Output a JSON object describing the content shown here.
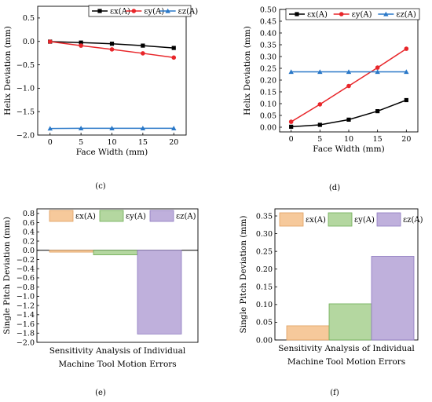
{
  "colors": {
    "ex": "#000000",
    "ey": "#e8262a",
    "ez": "#2a78c8",
    "bar_ex": "#f6c99b",
    "bar_ey": "#b4d7a0",
    "bar_ez": "#bfb0dc"
  },
  "chart_data": [
    {
      "panel": "c",
      "type": "line",
      "label": "(c)",
      "xlabel": "Face Width (mm)",
      "ylabel": "Helix Deviation (mm)",
      "x": [
        0,
        5,
        10,
        15,
        20
      ],
      "xticks": [
        "0",
        "5",
        "10",
        "15",
        "20"
      ],
      "yticks": [
        "0.5",
        "0.0",
        "−0.5",
        "−1.0",
        "−1.5",
        "−2.0"
      ],
      "ylim": [
        -2.0,
        0.75
      ],
      "legend": [
        "εx(A)",
        "εy(A)",
        "εz(A)"
      ],
      "legend_position": "top-right",
      "series": [
        {
          "name": "εx(A)",
          "values": [
            -0.005,
            -0.025,
            -0.05,
            -0.09,
            -0.14
          ]
        },
        {
          "name": "εy(A)",
          "values": [
            -0.005,
            -0.09,
            -0.17,
            -0.255,
            -0.345
          ]
        },
        {
          "name": "εz(A)",
          "values": [
            -1.86,
            -1.855,
            -1.855,
            -1.855,
            -1.855
          ]
        }
      ]
    },
    {
      "panel": "d",
      "type": "line",
      "label": "(d)",
      "xlabel": "Face Width (mm)",
      "ylabel": "Helix Deviation (mm)",
      "x": [
        0,
        5,
        10,
        15,
        20
      ],
      "xticks": [
        "0",
        "5",
        "10",
        "15",
        "20"
      ],
      "yticks": [
        "0.00",
        "0.05",
        "0.10",
        "0.15",
        "0.20",
        "0.25",
        "0.30",
        "0.35",
        "0.40",
        "0.45",
        "0.50"
      ],
      "ylim": [
        -0.02,
        0.5
      ],
      "legend": [
        "εx(A)",
        "εy(A)",
        "εz(A)"
      ],
      "legend_position": "top-right",
      "series": [
        {
          "name": "εx(A)",
          "values": [
            0.002,
            0.01,
            0.032,
            0.068,
            0.115
          ]
        },
        {
          "name": "εy(A)",
          "values": [
            0.023,
            0.097,
            0.175,
            0.253,
            0.333
          ]
        },
        {
          "name": "εz(A)",
          "values": [
            0.235,
            0.235,
            0.235,
            0.235,
            0.235
          ]
        }
      ]
    },
    {
      "panel": "e",
      "type": "bar",
      "label": "(e)",
      "xlabel_lines": [
        "Sensitivity Analysis of Individual",
        "Machine Tool Motion Errors"
      ],
      "ylabel": "Single Pitch Deviation (mm)",
      "yticks": [
        "0.8",
        "0.6",
        "0.4",
        "0.2",
        "0.0",
        "−0.2",
        "−0.4",
        "−0.6",
        "−0.8",
        "−1.0",
        "−1.2",
        "−1.4",
        "−1.6",
        "−1.8",
        "−2.0"
      ],
      "ylim": [
        -2.0,
        0.9
      ],
      "legend": [
        "εx(A)",
        "εy(A)",
        "εz(A)"
      ],
      "legend_position": "top",
      "categories": [
        "εx(A)",
        "εy(A)",
        "εz(A)"
      ],
      "values": [
        -0.04,
        -0.1,
        -1.82
      ]
    },
    {
      "panel": "f",
      "type": "bar",
      "label": "(f)",
      "xlabel_lines": [
        "Sensitivity Analysis of Individual",
        "Machine Tool Motion Errors"
      ],
      "ylabel": "Single Pitch Deviation (mm)",
      "yticks": [
        "0.00",
        "0.05",
        "0.10",
        "0.15",
        "0.20",
        "0.25",
        "0.30",
        "0.35"
      ],
      "ylim": [
        0.0,
        0.37
      ],
      "legend": [
        "εx(A)",
        "εy(A)",
        "εz(A)"
      ],
      "legend_position": "top",
      "categories": [
        "εx(A)",
        "εy(A)",
        "εz(A)"
      ],
      "values": [
        0.04,
        0.102,
        0.236
      ]
    }
  ]
}
